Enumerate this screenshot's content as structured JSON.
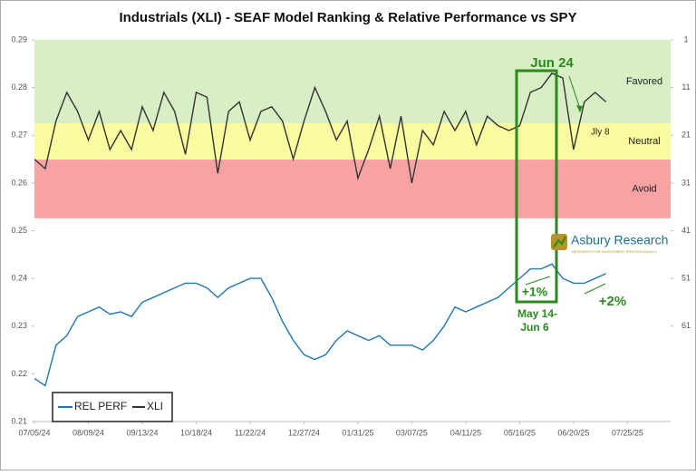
{
  "chart_data": {
    "type": "line",
    "title": "Industrials (XLI) - SEAF Model Ranking & Relative Performance vs SPY",
    "x": [
      "2024-07-05",
      "2024-07-12",
      "2024-07-19",
      "2024-07-26",
      "2024-08-02",
      "2024-08-09",
      "2024-08-16",
      "2024-08-23",
      "2024-08-30",
      "2024-09-06",
      "2024-09-13",
      "2024-09-20",
      "2024-09-27",
      "2024-10-04",
      "2024-10-11",
      "2024-10-18",
      "2024-10-25",
      "2024-11-01",
      "2024-11-08",
      "2024-11-15",
      "2024-11-22",
      "2024-11-29",
      "2024-12-06",
      "2024-12-13",
      "2024-12-20",
      "2024-12-27",
      "2025-01-03",
      "2025-01-10",
      "2025-01-17",
      "2025-01-24",
      "2025-01-31",
      "2025-02-07",
      "2025-02-14",
      "2025-02-21",
      "2025-02-28",
      "2025-03-07",
      "2025-03-14",
      "2025-03-21",
      "2025-03-28",
      "2025-04-04",
      "2025-04-11",
      "2025-04-18",
      "2025-04-25",
      "2025-05-02",
      "2025-05-09",
      "2025-05-16",
      "2025-05-23",
      "2025-05-30",
      "2025-06-06",
      "2025-06-13",
      "2025-06-20",
      "2025-06-27",
      "2025-07-04",
      "2025-07-11"
    ],
    "series": [
      {
        "name": "REL PERF",
        "color": "#1f77b4",
        "axis": "y",
        "values": [
          0.219,
          0.2175,
          0.226,
          0.228,
          0.232,
          0.233,
          0.234,
          0.2325,
          0.233,
          0.232,
          0.235,
          0.236,
          0.237,
          0.238,
          0.239,
          0.239,
          0.238,
          0.236,
          0.238,
          0.239,
          0.24,
          0.24,
          0.236,
          0.231,
          0.227,
          0.224,
          0.223,
          0.224,
          0.227,
          0.229,
          0.228,
          0.227,
          0.228,
          0.226,
          0.226,
          0.226,
          0.225,
          0.227,
          0.23,
          0.234,
          0.233,
          0.234,
          0.235,
          0.236,
          0.238,
          0.24,
          0.242,
          0.242,
          0.243,
          0.24,
          0.239,
          0.239,
          0.24,
          0.241
        ]
      },
      {
        "name": "XLI",
        "color": "#333333",
        "axis": "y2",
        "values": [
          26,
          28,
          18,
          12,
          16,
          22,
          16,
          24,
          20,
          24,
          15,
          20,
          12,
          16,
          25,
          12,
          13,
          29,
          16,
          14,
          22,
          16,
          15,
          18,
          26,
          18,
          11,
          16,
          22,
          18,
          30,
          24,
          17,
          28,
          17,
          31,
          20,
          23,
          16,
          20,
          16,
          23,
          17,
          19,
          20,
          19,
          12,
          11,
          8,
          9,
          24,
          14,
          12,
          14
        ]
      }
    ],
    "xlim": [
      "2024-07-05",
      "2025-08-22"
    ],
    "xticks": [
      {
        "value": "2024-07-05",
        "label": "07/05/24"
      },
      {
        "value": "2024-08-09",
        "label": "08/09/24"
      },
      {
        "value": "2024-09-13",
        "label": "09/13/24"
      },
      {
        "value": "2024-10-18",
        "label": "10/18/24"
      },
      {
        "value": "2024-11-22",
        "label": "11/22/24"
      },
      {
        "value": "2024-12-27",
        "label": "12/27/24"
      },
      {
        "value": "2025-01-31",
        "label": "01/31/25"
      },
      {
        "value": "2025-03-07",
        "label": "03/07/25"
      },
      {
        "value": "2025-04-11",
        "label": "04/11/25"
      },
      {
        "value": "2025-05-16",
        "label": "05/16/25"
      },
      {
        "value": "2025-06-20",
        "label": "06/20/25"
      },
      {
        "value": "2025-07-25",
        "label": "07/25/25"
      }
    ],
    "ylim": [
      0.21,
      0.29
    ],
    "yticks": [
      0.21,
      0.22,
      0.23,
      0.24,
      0.25,
      0.26,
      0.27,
      0.28,
      0.29
    ],
    "y2lim": [
      81,
      1
    ],
    "y2ticks": [
      1,
      11,
      21,
      31,
      41,
      51,
      61
    ],
    "bands": [
      {
        "label": "Favored",
        "from": 1,
        "to": 18.5,
        "color": "#d8eec4"
      },
      {
        "label": "Neutral",
        "from": 18.5,
        "to": 26.1,
        "color": "#fafaa0"
      },
      {
        "label": "Avoid",
        "from": 26.1,
        "to": 38.4,
        "color": "#f8a3a3"
      }
    ],
    "annotations": [
      "Jun 24",
      "Jly 8",
      "+1%",
      "May 14-",
      "Jun 6",
      "+2%"
    ],
    "logo": {
      "name": "Asbury Research",
      "tagline": "RESEARCH FOR INVESTMENT PROFESSIONALS"
    }
  }
}
